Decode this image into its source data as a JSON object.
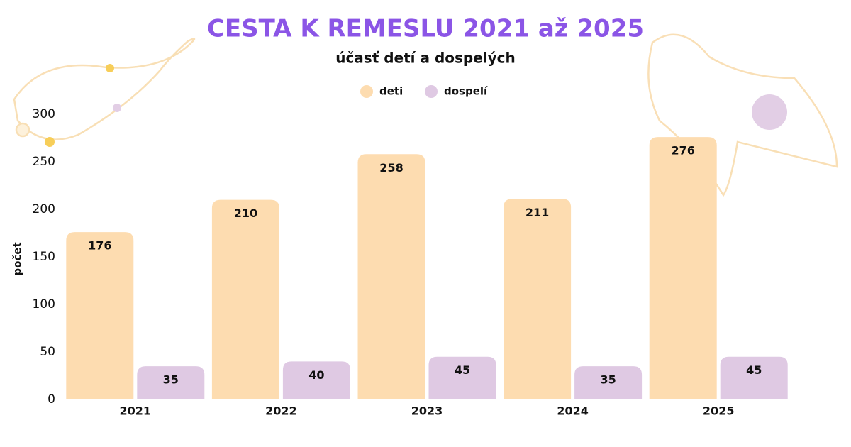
{
  "chart_data": {
    "type": "bar",
    "title": "CESTA K REMESLU 2021 až 2025",
    "subtitle": "účasť detí a dospelých",
    "y_label": "počet",
    "categories": [
      "2021",
      "2022",
      "2023",
      "2024",
      "2025"
    ],
    "series": [
      {
        "name": "deti",
        "color": "#fddcb0",
        "values": [
          176,
          210,
          258,
          211,
          276
        ]
      },
      {
        "name": "dospelí",
        "color": "#dfc9e3",
        "values": [
          35,
          40,
          45,
          35,
          45
        ]
      }
    ],
    "ylim": [
      0,
      300
    ],
    "yticks": [
      0,
      50,
      100,
      150,
      200,
      250,
      300
    ],
    "grid": false,
    "legend": "top"
  }
}
